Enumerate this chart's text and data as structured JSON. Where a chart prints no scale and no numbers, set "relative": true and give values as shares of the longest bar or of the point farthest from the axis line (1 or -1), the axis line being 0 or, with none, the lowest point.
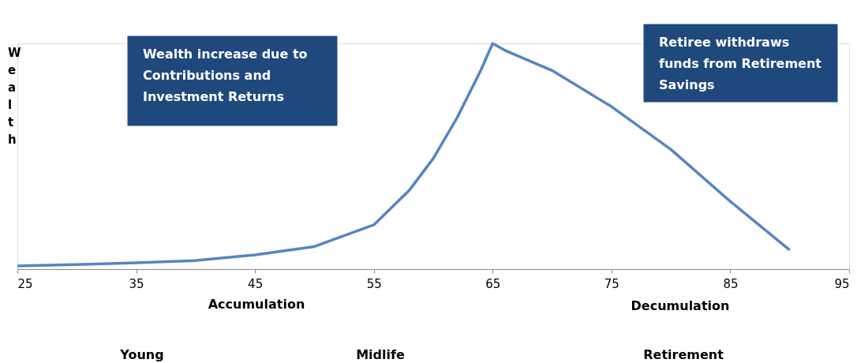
{
  "chart_data": {
    "type": "line",
    "relative": true,
    "ylabel": "Wealth",
    "x": [
      25,
      30,
      35,
      40,
      45,
      50,
      55,
      58,
      60,
      62,
      64,
      65,
      66,
      70,
      75,
      80,
      85,
      90
    ],
    "series": [
      {
        "color": "#5585c2",
        "values": [
          0.014,
          0.02,
          0.028,
          0.038,
          0.063,
          0.1,
          0.196,
          0.35,
          0.49,
          0.67,
          0.88,
          1.0,
          0.97,
          0.88,
          0.72,
          0.53,
          0.3,
          0.084
        ]
      }
    ],
    "xlim": [
      25,
      95
    ],
    "xticks": [
      25,
      35,
      45,
      55,
      65,
      75,
      85,
      95
    ],
    "grid": false,
    "marker": "none",
    "line_style": "solid",
    "annotations": [
      "Wealth increase due to Contributions and Investment Returns",
      "Retiree withdraws funds from Retirement Savings",
      "Accumulation",
      "Decumulation",
      "Young",
      "Midlife",
      "Retirement"
    ]
  }
}
